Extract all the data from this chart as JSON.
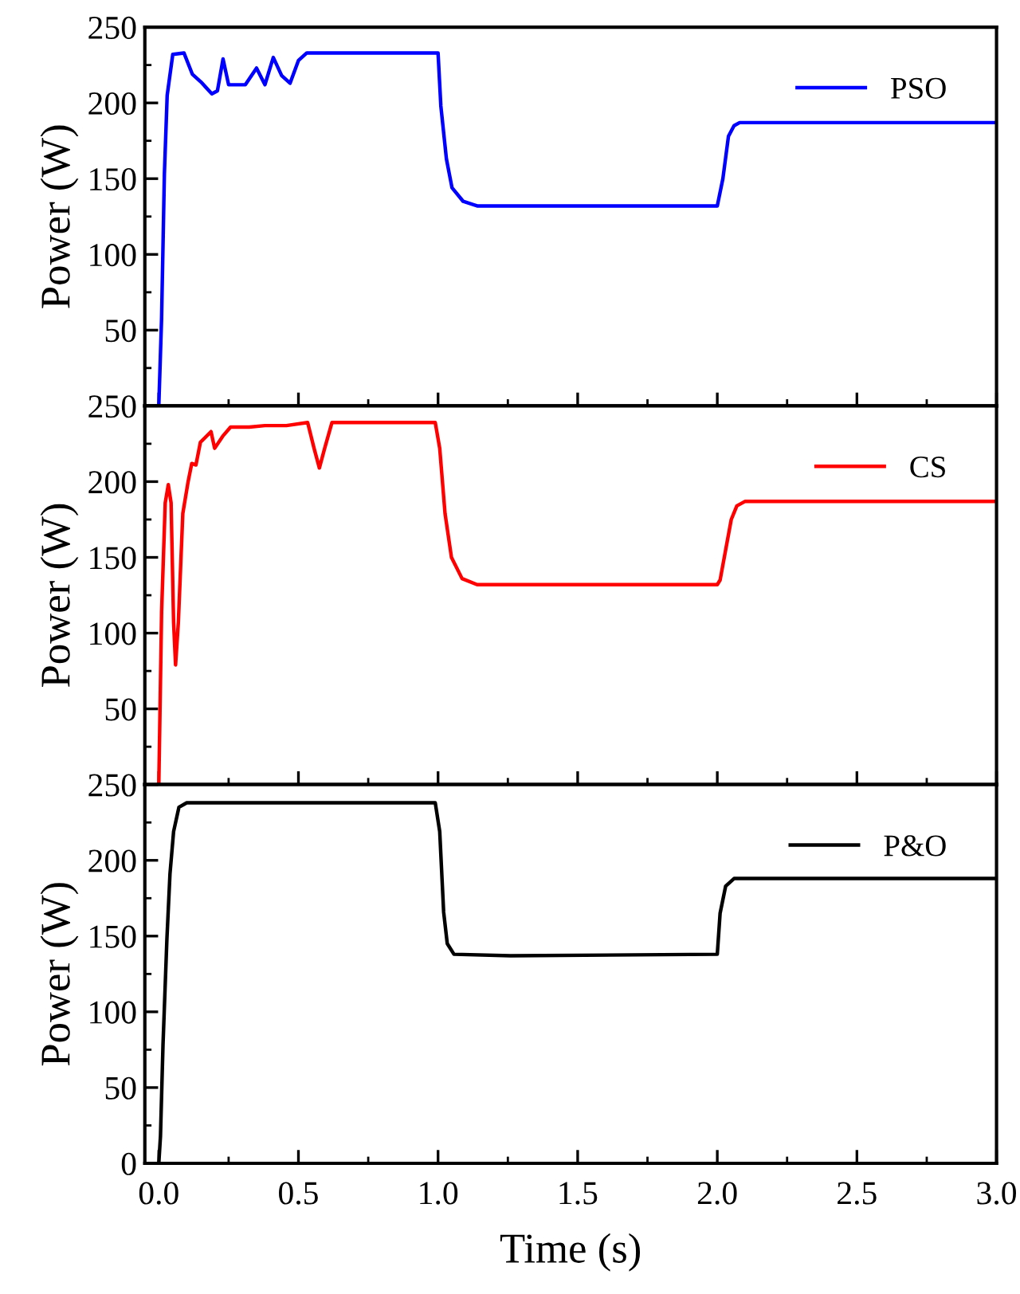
{
  "chart_data": [
    {
      "type": "line",
      "ylabel": "Power (W)",
      "xlim": [
        -0.05,
        3.0
      ],
      "xticks": [
        0,
        0.5,
        1,
        1.5,
        2,
        2.5,
        3
      ],
      "ylim": [
        0,
        250
      ],
      "yticks": [
        {
          "value": 0,
          "label": null
        },
        50,
        100,
        150,
        200,
        250
      ],
      "tick_labels": "y",
      "legend": "top right",
      "series": [
        {
          "name": "PSO",
          "color": "#0000ff",
          "x": [
            0,
            0.01,
            0.02,
            0.03,
            0.05,
            0.09,
            0.12,
            0.15,
            0.19,
            0.21,
            0.23,
            0.25,
            0.31,
            0.35,
            0.38,
            0.41,
            0.44,
            0.47,
            0.5,
            0.53,
            1.0,
            1.01,
            1.03,
            1.05,
            1.09,
            1.14,
            2.0,
            2.02,
            2.04,
            2.06,
            2.08,
            3.0
          ],
          "values": [
            0,
            58,
            153,
            205,
            232,
            233,
            219,
            214,
            206,
            208,
            229,
            212,
            212,
            223,
            212,
            230,
            218,
            213,
            228,
            233,
            233,
            198,
            163,
            144,
            135,
            132,
            132,
            150,
            178,
            185,
            187,
            187
          ]
        }
      ]
    },
    {
      "type": "line",
      "ylabel": "Power (W)",
      "xlim": [
        -0.05,
        3.0
      ],
      "xticks": [
        0,
        0.5,
        1,
        1.5,
        2,
        2.5,
        3
      ],
      "ylim": [
        0,
        250
      ],
      "yticks": [
        {
          "value": 0,
          "label": null
        },
        50,
        100,
        150,
        200,
        250
      ],
      "tick_labels": "y",
      "legend": "top right",
      "series": [
        {
          "name": "CS",
          "color": "#ff0000",
          "x": [
            0,
            0.01,
            0.023,
            0.034,
            0.044,
            0.053,
            0.06,
            0.07,
            0.086,
            0.105,
            0.118,
            0.133,
            0.149,
            0.187,
            0.2,
            0.229,
            0.257,
            0.324,
            0.38,
            0.457,
            0.533,
            0.556,
            0.575,
            0.594,
            0.62,
            0.99,
            1.006,
            1.025,
            1.048,
            1.086,
            1.14,
            2.0,
            2.01,
            2.03,
            2.05,
            2.07,
            2.1,
            3.0
          ],
          "values": [
            0,
            114,
            186,
            198,
            186,
            107,
            79,
            107,
            179,
            200,
            212,
            211,
            226,
            233,
            222,
            230,
            236,
            236,
            237,
            237,
            239,
            222,
            209,
            222,
            239,
            239,
            222,
            179,
            150,
            136,
            132,
            132,
            135,
            155,
            175,
            184,
            187,
            187
          ]
        }
      ]
    },
    {
      "type": "line",
      "ylabel": "Power (W)",
      "xlabel": "Time (s)",
      "xlim": [
        -0.05,
        3.0
      ],
      "xticks": [
        {
          "value": 0,
          "label": "0.0"
        },
        {
          "value": 0.5,
          "label": "0.5"
        },
        {
          "value": 1,
          "label": "1.0"
        },
        {
          "value": 1.5,
          "label": "1.5"
        },
        {
          "value": 2,
          "label": "2.0"
        },
        {
          "value": 2.5,
          "label": "2.5"
        },
        {
          "value": 3,
          "label": "3.0"
        }
      ],
      "ylim": [
        0,
        250
      ],
      "yticks": [
        0,
        50,
        100,
        150,
        200,
        250
      ],
      "legend": "top right",
      "series": [
        {
          "name": "P&O",
          "color": "#000000",
          "x": [
            0,
            0.006,
            0.015,
            0.029,
            0.04,
            0.053,
            0.072,
            0.1,
            0.99,
            1.006,
            1.02,
            1.033,
            1.057,
            1.26,
            2.0,
            2.01,
            2.03,
            2.06,
            3.0
          ],
          "values": [
            0,
            18,
            78,
            148,
            191,
            219,
            235,
            238,
            238,
            219,
            166,
            145,
            138,
            137,
            138,
            165,
            183,
            188,
            188
          ]
        }
      ]
    }
  ]
}
